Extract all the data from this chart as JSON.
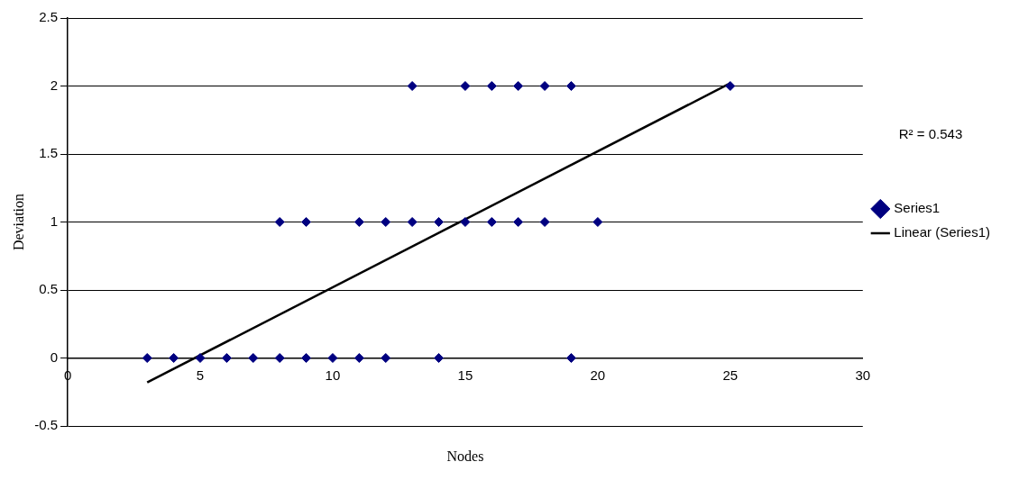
{
  "chart_data": {
    "type": "scatter",
    "xlabel": "Nodes",
    "ylabel": "Deviation",
    "series": [
      {
        "name": "Series1",
        "type": "scatter",
        "color": "#000080",
        "marker": "diamond",
        "x": [
          3,
          4,
          5,
          6,
          7,
          8,
          9,
          10,
          11,
          12,
          14,
          19,
          8,
          9,
          11,
          12,
          13,
          14,
          15,
          16,
          17,
          18,
          20,
          13,
          15,
          16,
          17,
          18,
          19,
          25
        ],
        "values": [
          0,
          0,
          0,
          0,
          0,
          0,
          0,
          0,
          0,
          0,
          0,
          0,
          1,
          1,
          1,
          1,
          1,
          1,
          1,
          1,
          1,
          1,
          1,
          2,
          2,
          2,
          2,
          2,
          2,
          2
        ]
      },
      {
        "name": "Linear (Series1)",
        "type": "line",
        "color": "#000000",
        "marker": "none",
        "line_style": "solid",
        "x": [
          3,
          25
        ],
        "values": [
          -0.18,
          2.02
        ]
      }
    ],
    "xlim": [
      0,
      30
    ],
    "xticks": [
      0,
      5,
      10,
      15,
      20,
      25,
      30
    ],
    "ylim": [
      -0.5,
      2.5
    ],
    "yticks": [
      -0.5,
      0,
      0.5,
      1,
      1.5,
      2,
      2.5
    ],
    "grid": "y",
    "legend": "right",
    "annotations": [
      "R² = 0.543"
    ]
  }
}
